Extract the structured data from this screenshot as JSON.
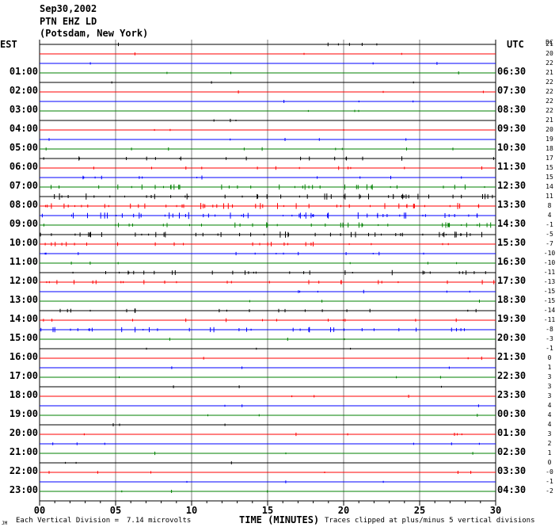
{
  "header": {
    "date": "Sep30,2002",
    "station": "PTN EHZ LD",
    "location": "(Potsdam, New York)"
  },
  "left_title": "EST",
  "right_title": "UTC",
  "dc_title": "DC",
  "footer": {
    "scale_label": "Each Vertical Division =",
    "scale_value": "7.14 microvolts",
    "clip_note": "Traces clipped at plus/minus 5 vertical divisions",
    "corner_mark": "JM"
  },
  "chart_data": {
    "type": "line",
    "title": "Sep30,2002 PTN EHZ LD (Potsdam, New York)",
    "xlabel": "TIME (MINUTES)",
    "xlim": [
      0,
      30
    ],
    "xticks": [
      "00",
      "05",
      "10",
      "15",
      "20",
      "25",
      "30"
    ],
    "trace_colors": [
      "#000000",
      "#ff0000",
      "#0000ff",
      "#008000"
    ],
    "grid": true,
    "rows": [
      {
        "est": "",
        "utc": "",
        "dc": "21",
        "activity": 0.1
      },
      {
        "est": "",
        "utc": "",
        "dc": "20",
        "activity": 0.05
      },
      {
        "est": "01:00",
        "utc": "06:30",
        "dc": "22",
        "activity": 0.05
      },
      {
        "est": "",
        "utc": "",
        "dc": "21",
        "activity": 0.05
      },
      {
        "est": "02:00",
        "utc": "07:30",
        "dc": "22",
        "activity": 0.05
      },
      {
        "est": "",
        "utc": "",
        "dc": "22",
        "activity": 0.05
      },
      {
        "est": "03:00",
        "utc": "08:30",
        "dc": "22",
        "activity": 0.05
      },
      {
        "est": "",
        "utc": "",
        "dc": "22",
        "activity": 0.05
      },
      {
        "est": "04:00",
        "utc": "09:30",
        "dc": "21",
        "activity": 0.05
      },
      {
        "est": "",
        "utc": "",
        "dc": "20",
        "activity": 0.05
      },
      {
        "est": "05:00",
        "utc": "10:30",
        "dc": "19",
        "activity": 0.08
      },
      {
        "est": "",
        "utc": "",
        "dc": "18",
        "activity": 0.15
      },
      {
        "est": "06:00",
        "utc": "11:30",
        "dc": "17",
        "activity": 0.3
      },
      {
        "est": "",
        "utc": "",
        "dc": "15",
        "activity": 0.2
      },
      {
        "est": "07:00",
        "utc": "12:30",
        "dc": "15",
        "activity": 0.2
      },
      {
        "est": "",
        "utc": "",
        "dc": "14",
        "activity": 0.6
      },
      {
        "est": "08:00",
        "utc": "13:30",
        "dc": "11",
        "activity": 0.8
      },
      {
        "est": "",
        "utc": "",
        "dc": "8",
        "activity": 0.8
      },
      {
        "est": "09:00",
        "utc": "14:30",
        "dc": "4",
        "activity": 0.9
      },
      {
        "est": "",
        "utc": "",
        "dc": "-1",
        "activity": 0.6
      },
      {
        "est": "10:00",
        "utc": "15:30",
        "dc": "-5",
        "activity": 0.8
      },
      {
        "est": "",
        "utc": "",
        "dc": "-7",
        "activity": 0.4
      },
      {
        "est": "11:00",
        "utc": "16:30",
        "dc": "-10",
        "activity": 0.2
      },
      {
        "est": "",
        "utc": "",
        "dc": "-10",
        "activity": 0.1
      },
      {
        "est": "12:00",
        "utc": "17:30",
        "dc": "-11",
        "activity": 0.5
      },
      {
        "est": "",
        "utc": "",
        "dc": "-13",
        "activity": 0.4
      },
      {
        "est": "13:00",
        "utc": "18:30",
        "dc": "-15",
        "activity": 0.1
      },
      {
        "est": "",
        "utc": "",
        "dc": "-15",
        "activity": 0.05
      },
      {
        "est": "14:00",
        "utc": "19:30",
        "dc": "-14",
        "activity": 0.3
      },
      {
        "est": "",
        "utc": "",
        "dc": "-11",
        "activity": 0.2
      },
      {
        "est": "15:00",
        "utc": "20:30",
        "dc": "-8",
        "activity": 0.6
      },
      {
        "est": "",
        "utc": "",
        "dc": "-3",
        "activity": 0.05
      },
      {
        "est": "16:00",
        "utc": "21:30",
        "dc": "-1",
        "activity": 0.05
      },
      {
        "est": "",
        "utc": "",
        "dc": "0",
        "activity": 0.05
      },
      {
        "est": "17:00",
        "utc": "22:30",
        "dc": "1",
        "activity": 0.05
      },
      {
        "est": "",
        "utc": "",
        "dc": "3",
        "activity": 0.05
      },
      {
        "est": "18:00",
        "utc": "23:30",
        "dc": "3",
        "activity": 0.05
      },
      {
        "est": "",
        "utc": "",
        "dc": "3",
        "activity": 0.05
      },
      {
        "est": "19:00",
        "utc": "00:30",
        "dc": "4",
        "activity": 0.05
      },
      {
        "est": "",
        "utc": "",
        "dc": "4",
        "activity": 0.05
      },
      {
        "est": "20:00",
        "utc": "01:30",
        "dc": "4",
        "activity": 0.05
      },
      {
        "est": "",
        "utc": "",
        "dc": "3",
        "activity": 0.1
      },
      {
        "est": "21:00",
        "utc": "02:30",
        "dc": "2",
        "activity": 0.1
      },
      {
        "est": "",
        "utc": "",
        "dc": "1",
        "activity": 0.05
      },
      {
        "est": "22:00",
        "utc": "03:30",
        "dc": "0",
        "activity": 0.05
      },
      {
        "est": "",
        "utc": "",
        "dc": "-0",
        "activity": 0.1
      },
      {
        "est": "23:00",
        "utc": "04:30",
        "dc": "-1",
        "activity": 0.05
      },
      {
        "est": "",
        "utc": "",
        "dc": "-2",
        "activity": 0.05
      }
    ]
  }
}
